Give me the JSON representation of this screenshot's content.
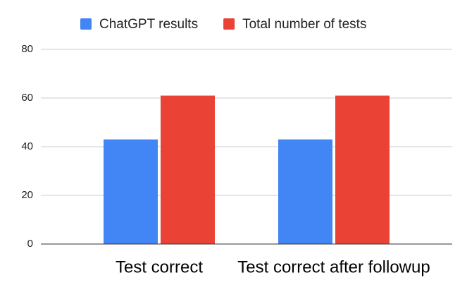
{
  "chart_data": {
    "type": "bar",
    "categories": [
      "Test correct",
      "Test correct after followup"
    ],
    "series": [
      {
        "name": "ChatGPT results",
        "color": "#4285f4",
        "values": [
          43,
          43
        ]
      },
      {
        "name": "Total number of tests",
        "color": "#ea4335",
        "values": [
          61,
          61
        ]
      }
    ],
    "ylim": [
      0,
      80
    ],
    "yticks": [
      0,
      20,
      40,
      60,
      80
    ],
    "grid": true,
    "legend": "top"
  }
}
